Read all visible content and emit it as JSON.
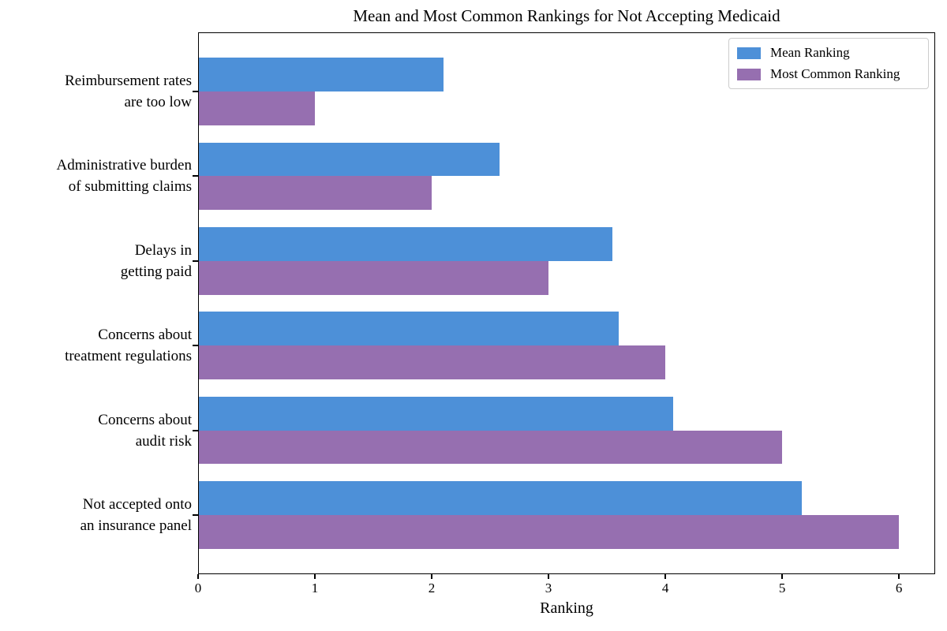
{
  "chart_data": {
    "type": "bar",
    "orientation": "horizontal",
    "title": "Mean and Most Common Rankings for Not Accepting Medicaid",
    "xlabel": "Ranking",
    "ylabel": "",
    "xlim": [
      0,
      6.31
    ],
    "xticks": [
      0,
      1,
      2,
      3,
      4,
      5,
      6
    ],
    "grid": false,
    "legend_position": "upper-right",
    "categories": [
      "Reimbursement rates\nare too low",
      "Administrative burden\nof submitting claims",
      "Delays in\ngetting paid",
      "Concerns about\ntreatment regulations",
      "Concerns about\naudit risk",
      "Not accepted onto\nan insurance panel"
    ],
    "series": [
      {
        "name": "Mean Ranking",
        "color": "#4d90d8",
        "values": [
          2.1,
          2.58,
          3.55,
          3.6,
          4.07,
          5.17
        ]
      },
      {
        "name": "Most Common Ranking",
        "color": "#966fb0",
        "values": [
          1,
          2,
          3,
          4,
          5,
          6
        ]
      }
    ],
    "colors": {
      "spine": "#000000",
      "legend_border": "#cccccc",
      "background": "#ffffff"
    }
  }
}
